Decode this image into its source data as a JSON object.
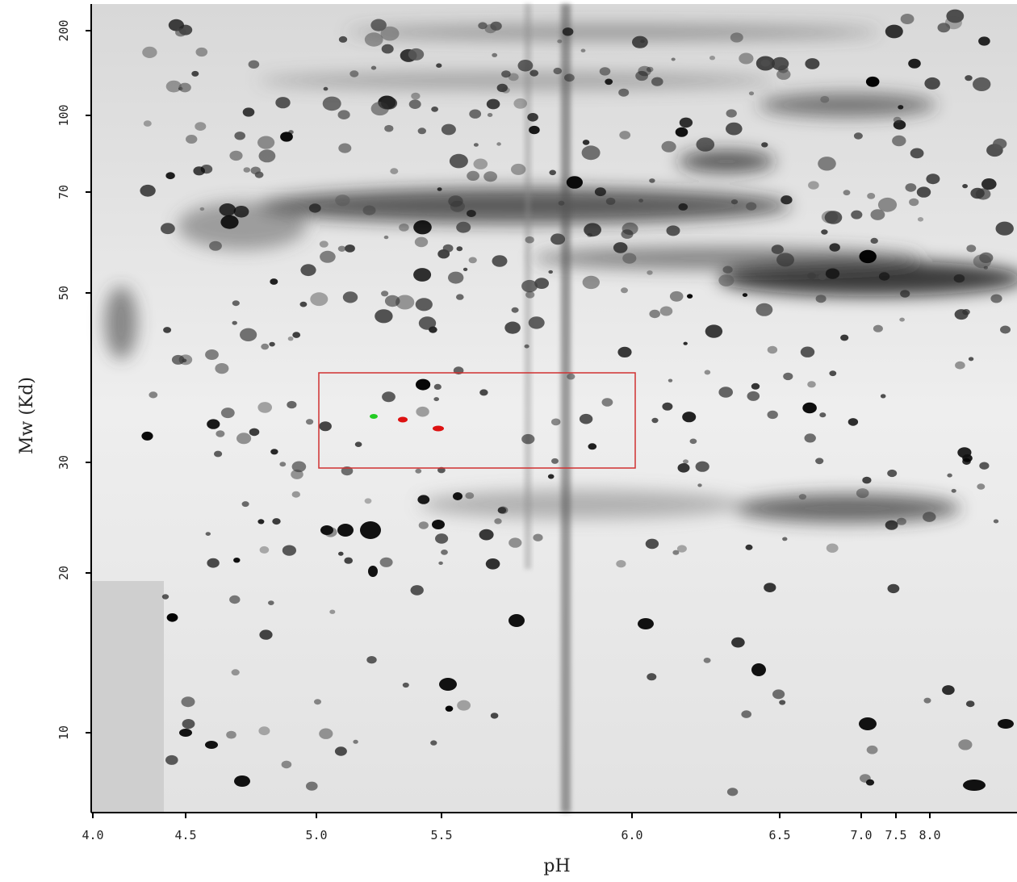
{
  "axes": {
    "x": {
      "label": "pH",
      "ticks": [
        "4.0",
        "4.5",
        "5.0",
        "5.5",
        "6.0",
        "6.5",
        "7.0",
        "7.5",
        "8.0"
      ]
    },
    "y": {
      "label": "Mw (Kd)",
      "ticks": [
        "200",
        "100",
        "70",
        "50",
        "30",
        "20",
        "10"
      ]
    }
  }
}
